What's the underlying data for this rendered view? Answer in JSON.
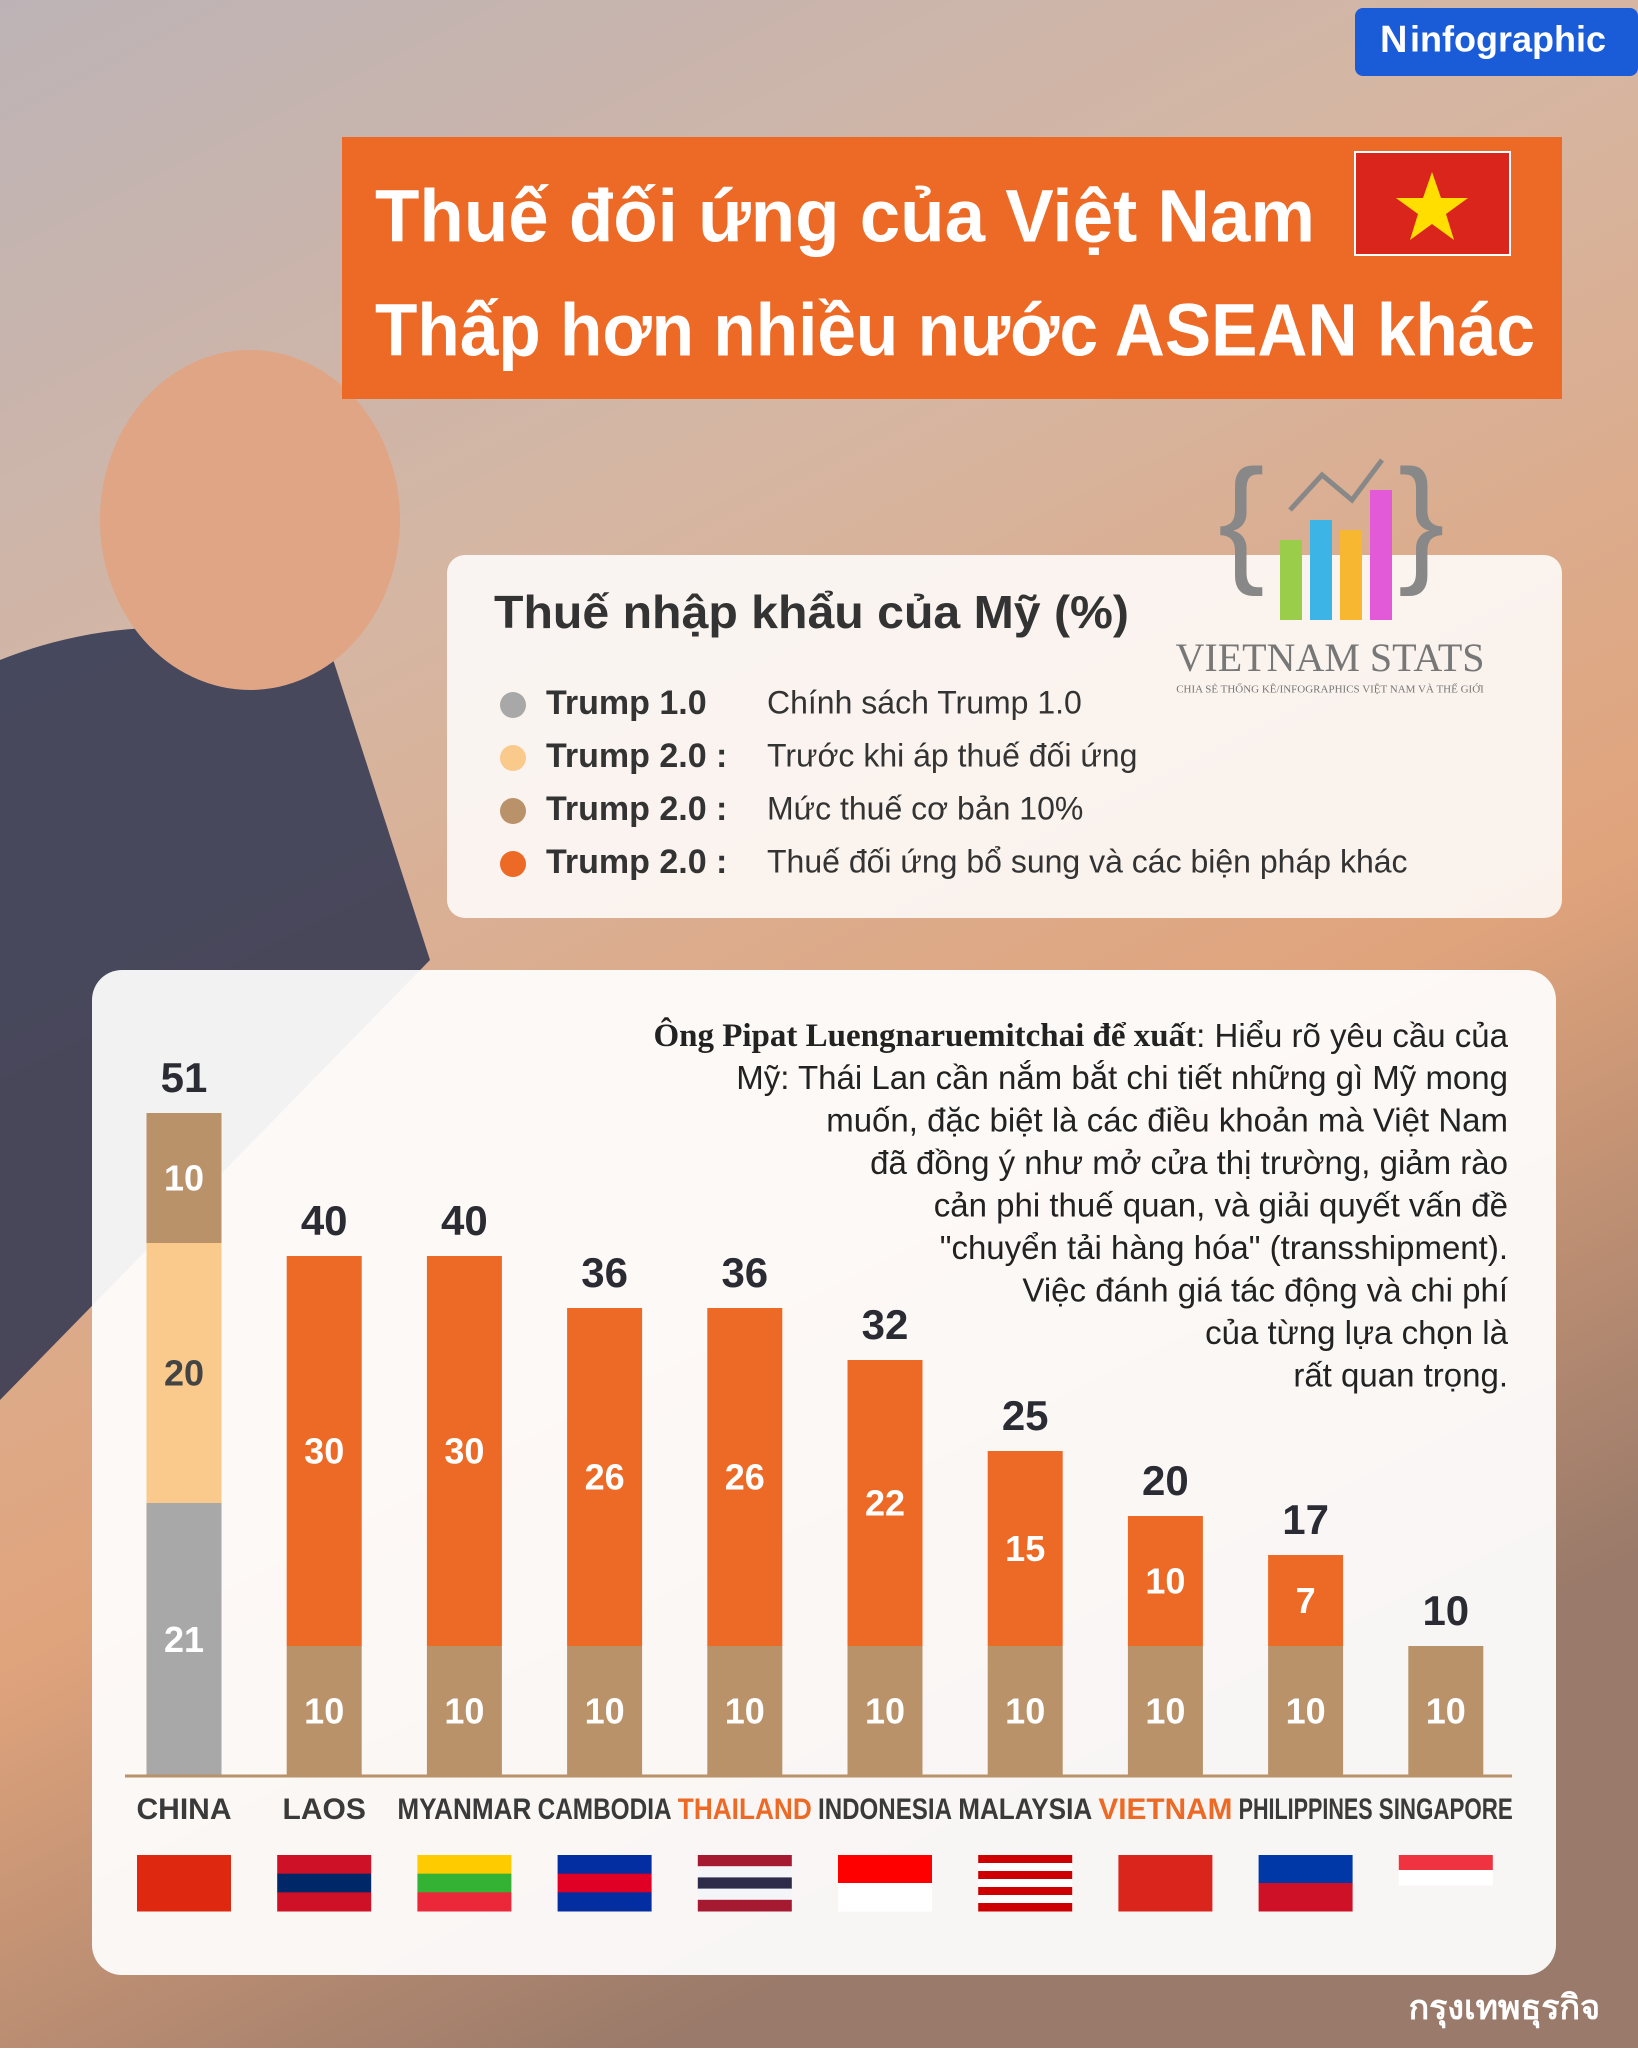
{
  "brand": "infographic",
  "source": "กรุงเทพธุรกิจ",
  "title_lines": [
    "Thuế đối ứng của Việt Nam",
    "Thấp hơn nhiều nước ASEAN khác"
  ],
  "logo": {
    "name": "VIETNAM STATS",
    "tagline": "CHIA SẺ THỐNG KÊ/INFOGRAPHICS VIỆT NAM VÀ THẾ GIỚI"
  },
  "quote": {
    "speaker": "Ông Pipat Luengnaruemitchai để xuất",
    "lines": [
      ": Hiểu rõ yêu cầu của",
      "Mỹ: Thái Lan cần nắm bắt chi tiết những gì Mỹ mong",
      "muốn, đặc biệt là các điều khoản mà Việt Nam",
      "đã đồng ý như mở cửa thị trường, giảm rào",
      "cản phi thuế quan, và giải quyết vấn đề",
      "\"chuyển tải hàng hóa\" (transshipment).",
      "Việc đánh giá tác động và chi phí",
      "của từng lựa chọn là",
      "rất quan trọng."
    ]
  },
  "chart_data": {
    "type": "stacked_bar",
    "legend_title": "Thuế nhập khẩu của Mỹ (%)",
    "categories": [
      "CHINA",
      "LAOS",
      "MYANMAR",
      "CAMBODIA",
      "THAILAND",
      "INDONESIA",
      "MALAYSIA",
      "VIETNAM",
      "PHILIPPINES",
      "SINGAPORE"
    ],
    "category_colors": [
      "#3a3a3a",
      "#3a3a3a",
      "#3a3a3a",
      "#3a3a3a",
      "#ec6a25",
      "#3a3a3a",
      "#3a3a3a",
      "#ec6a25",
      "#3a3a3a",
      "#3a3a3a"
    ],
    "series": [
      {
        "name": "Trump 1.0",
        "description": "Chính sách Trump 1.0",
        "color": "#a8a8a8",
        "label_color": "#ffffff",
        "values": [
          21,
          null,
          null,
          null,
          null,
          null,
          null,
          null,
          null,
          null
        ]
      },
      {
        "name": "Trump 2.0 :",
        "description": "Trước khi áp thuế đối ứng",
        "color": "#f9ca8c",
        "label_color": "#444444",
        "values": [
          20,
          null,
          null,
          null,
          null,
          null,
          null,
          null,
          null,
          null
        ]
      },
      {
        "name": "Trump 2.0 :",
        "description": "Mức thuế cơ bản 10%",
        "color": "#b9926a",
        "label_color": "#ffffff",
        "values": [
          10,
          10,
          10,
          10,
          10,
          10,
          10,
          10,
          10,
          10
        ]
      },
      {
        "name": "Trump 2.0 :",
        "description": "Thuế đối ứng bổ sung và các biện pháp khác",
        "color": "#ec6a25",
        "label_color": "#ffffff",
        "values": [
          null,
          30,
          30,
          26,
          26,
          22,
          15,
          10,
          7,
          null
        ]
      }
    ],
    "totals": [
      51,
      40,
      40,
      36,
      36,
      32,
      25,
      20,
      17,
      10
    ],
    "ylim": [
      0,
      55
    ]
  }
}
